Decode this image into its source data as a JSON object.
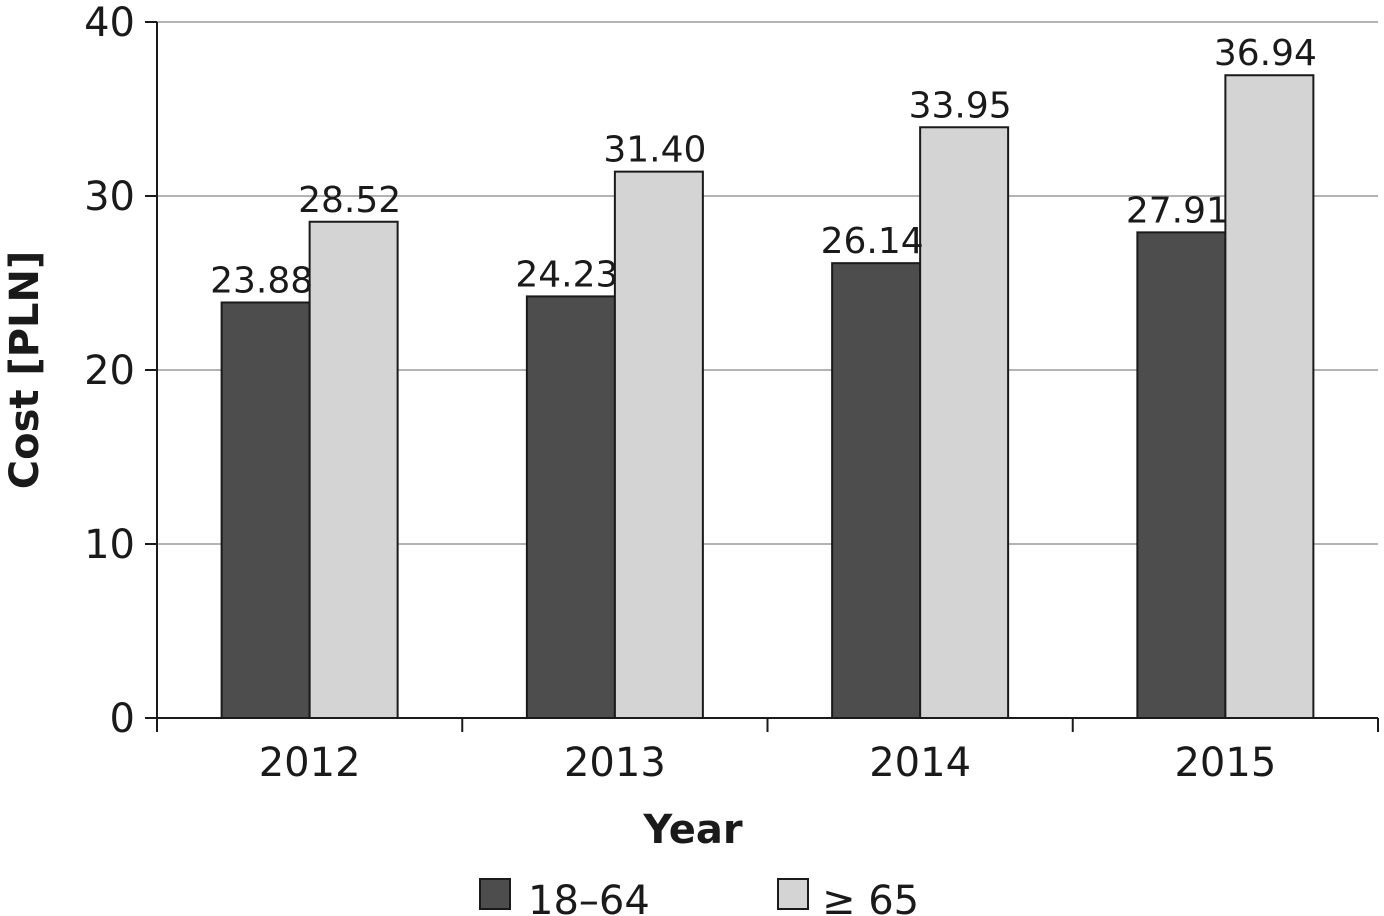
{
  "chart_data": {
    "type": "bar",
    "categories": [
      "2012",
      "2013",
      "2014",
      "2015"
    ],
    "series": [
      {
        "name": "18–64",
        "values": [
          23.88,
          24.23,
          26.14,
          27.91
        ],
        "labels": [
          "23.88",
          "24.23",
          "26.14",
          "27.91"
        ],
        "color": "#4d4d4d"
      },
      {
        "name": "≥ 65",
        "values": [
          28.52,
          31.4,
          33.95,
          36.94
        ],
        "labels": [
          "28.52",
          "31.40",
          "33.95",
          "36.94"
        ],
        "color": "#d4d4d4"
      }
    ],
    "xlabel": "Year",
    "ylabel": "Cost [PLN]",
    "ylim": [
      0,
      40
    ],
    "yticks": [
      0,
      10,
      20,
      30,
      40
    ],
    "grid": true,
    "legend_position": "bottom"
  }
}
